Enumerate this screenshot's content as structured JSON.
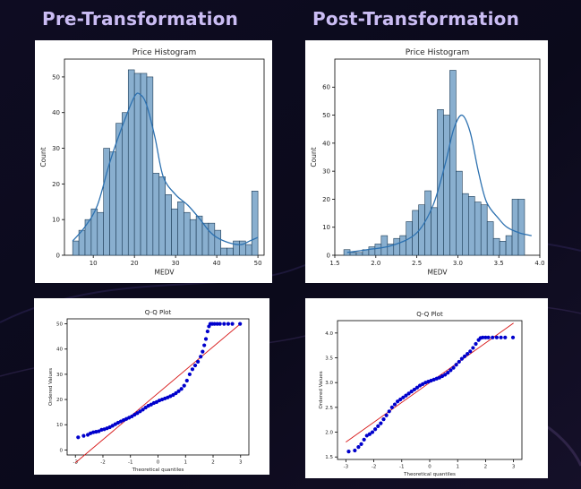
{
  "headings": {
    "pre": "Pre-Transformation",
    "post": "Post-Transformation"
  },
  "colors": {
    "heading": "#cbbdf4",
    "background": "#0d0b1e",
    "bar_fill": "#89afcf",
    "bar_edge": "#1d3b55",
    "kde_line": "#2d71b0",
    "qq_points": "#0000cc",
    "qq_line": "#d71414"
  },
  "chart_data": [
    {
      "id": "hist-pre",
      "type": "bar",
      "title": "Price Histogram",
      "xlabel": "MEDV",
      "ylabel": "Count",
      "xlim": [
        3.0,
        51.5
      ],
      "ylim": [
        0,
        55
      ],
      "xticks": [
        10,
        20,
        30,
        40,
        50
      ],
      "yticks": [
        0,
        10,
        20,
        30,
        40,
        50
      ],
      "bins": {
        "start": 5.0,
        "width": 1.5
      },
      "values": [
        4,
        7,
        10,
        13,
        12,
        30,
        29,
        37,
        40,
        52,
        51,
        51,
        50,
        23,
        22,
        17,
        13,
        15,
        12,
        10,
        11,
        9,
        9,
        7,
        2,
        2,
        4,
        4,
        3,
        18
      ],
      "kde": [
        [
          5,
          4
        ],
        [
          8,
          8
        ],
        [
          11,
          14
        ],
        [
          14,
          26
        ],
        [
          17,
          36
        ],
        [
          20,
          44.5
        ],
        [
          21.5,
          45
        ],
        [
          23,
          42
        ],
        [
          25,
          33
        ],
        [
          27,
          22
        ],
        [
          30,
          17
        ],
        [
          33,
          14
        ],
        [
          36,
          10
        ],
        [
          38,
          7
        ],
        [
          40,
          5
        ],
        [
          43,
          3.5
        ],
        [
          46,
          3
        ],
        [
          48,
          4
        ],
        [
          50,
          5
        ]
      ],
      "grid": false
    },
    {
      "id": "hist-post",
      "type": "bar",
      "title": "Price Histogram",
      "xlabel": "MEDV",
      "ylabel": "Count",
      "xlim": [
        1.5,
        4.0
      ],
      "ylim": [
        0,
        70
      ],
      "xticks": [
        1.5,
        2.0,
        2.5,
        3.0,
        3.5,
        4.0
      ],
      "yticks": [
        0,
        10,
        20,
        30,
        40,
        50,
        60
      ],
      "bins": {
        "start": 1.61,
        "width": 0.076
      },
      "values": [
        2,
        1,
        1,
        2,
        3,
        4,
        7,
        4,
        6,
        7,
        12,
        16,
        18,
        23,
        17,
        52,
        50,
        66,
        30,
        22,
        21,
        19,
        18,
        12,
        6,
        5,
        7,
        20,
        20
      ],
      "kde": [
        [
          1.65,
          1
        ],
        [
          1.9,
          2
        ],
        [
          2.2,
          3.5
        ],
        [
          2.5,
          8
        ],
        [
          2.7,
          18
        ],
        [
          2.85,
          33
        ],
        [
          2.95,
          45
        ],
        [
          3.05,
          50
        ],
        [
          3.15,
          44
        ],
        [
          3.25,
          30
        ],
        [
          3.35,
          19
        ],
        [
          3.5,
          13
        ],
        [
          3.6,
          10
        ],
        [
          3.75,
          8
        ],
        [
          3.9,
          7
        ]
      ],
      "grid": false
    },
    {
      "id": "qq-pre",
      "type": "scatter",
      "title": "Q-Q Plot",
      "xlabel": "Theoretical quantiles",
      "ylabel": "Ordered Values",
      "xlim": [
        -3.3,
        3.3
      ],
      "ylim": [
        -2,
        52
      ],
      "xticks": [
        -3,
        -2,
        -1,
        0,
        1,
        2,
        3
      ],
      "yticks": [
        0,
        10,
        20,
        30,
        40,
        50
      ],
      "line": {
        "intercept": 22.5,
        "slope": 9.2
      },
      "points": [
        [
          -2.9,
          5
        ],
        [
          -2.7,
          5.6
        ],
        [
          -2.55,
          6
        ],
        [
          -2.45,
          6.6
        ],
        [
          -2.35,
          7
        ],
        [
          -2.25,
          7.2
        ],
        [
          -2.15,
          7.4
        ],
        [
          -2.05,
          8
        ],
        [
          -1.95,
          8.2
        ],
        [
          -1.85,
          8.6
        ],
        [
          -1.75,
          9
        ],
        [
          -1.65,
          9.6
        ],
        [
          -1.55,
          10.2
        ],
        [
          -1.45,
          10.8
        ],
        [
          -1.35,
          11.3
        ],
        [
          -1.25,
          11.8
        ],
        [
          -1.15,
          12.3
        ],
        [
          -1.05,
          12.8
        ],
        [
          -0.95,
          13.3
        ],
        [
          -0.85,
          14
        ],
        [
          -0.75,
          14.6
        ],
        [
          -0.65,
          15.3
        ],
        [
          -0.55,
          16
        ],
        [
          -0.45,
          16.8
        ],
        [
          -0.35,
          17.5
        ],
        [
          -0.25,
          18
        ],
        [
          -0.15,
          18.6
        ],
        [
          -0.05,
          19
        ],
        [
          0.05,
          19.6
        ],
        [
          0.15,
          20
        ],
        [
          0.25,
          20.4
        ],
        [
          0.35,
          20.8
        ],
        [
          0.45,
          21.3
        ],
        [
          0.55,
          21.8
        ],
        [
          0.65,
          22.5
        ],
        [
          0.75,
          23.3
        ],
        [
          0.85,
          24.2
        ],
        [
          0.95,
          25.5
        ],
        [
          1.05,
          27.5
        ],
        [
          1.15,
          30
        ],
        [
          1.25,
          32
        ],
        [
          1.35,
          33.5
        ],
        [
          1.45,
          35
        ],
        [
          1.55,
          37
        ],
        [
          1.62,
          39
        ],
        [
          1.68,
          41.5
        ],
        [
          1.74,
          44
        ],
        [
          1.8,
          47
        ],
        [
          1.85,
          49
        ],
        [
          1.9,
          50
        ],
        [
          1.97,
          50
        ],
        [
          2.05,
          50
        ],
        [
          2.15,
          50
        ],
        [
          2.25,
          50
        ],
        [
          2.4,
          50
        ],
        [
          2.55,
          50
        ],
        [
          2.7,
          50
        ],
        [
          2.98,
          50
        ]
      ]
    },
    {
      "id": "qq-post",
      "type": "scatter",
      "title": "Q-Q Plot",
      "xlabel": "Theoretical quantiles",
      "ylabel": "Ordered Values",
      "xlim": [
        -3.3,
        3.3
      ],
      "ylim": [
        1.45,
        4.25
      ],
      "xticks": [
        -3,
        -2,
        -1,
        0,
        1,
        2,
        3
      ],
      "yticks": [
        1.5,
        2.0,
        2.5,
        3.0,
        3.5,
        4.0
      ],
      "line": {
        "intercept": 3.0,
        "slope": 0.4
      },
      "points": [
        [
          -2.9,
          1.61
        ],
        [
          -2.68,
          1.63
        ],
        [
          -2.55,
          1.7
        ],
        [
          -2.45,
          1.76
        ],
        [
          -2.35,
          1.85
        ],
        [
          -2.25,
          1.93
        ],
        [
          -2.15,
          1.96
        ],
        [
          -2.05,
          2.0
        ],
        [
          -1.95,
          2.06
        ],
        [
          -1.85,
          2.12
        ],
        [
          -1.75,
          2.18
        ],
        [
          -1.65,
          2.26
        ],
        [
          -1.55,
          2.34
        ],
        [
          -1.45,
          2.42
        ],
        [
          -1.35,
          2.5
        ],
        [
          -1.25,
          2.56
        ],
        [
          -1.15,
          2.62
        ],
        [
          -1.05,
          2.66
        ],
        [
          -0.95,
          2.7
        ],
        [
          -0.85,
          2.74
        ],
        [
          -0.75,
          2.78
        ],
        [
          -0.65,
          2.82
        ],
        [
          -0.55,
          2.86
        ],
        [
          -0.45,
          2.9
        ],
        [
          -0.35,
          2.94
        ],
        [
          -0.25,
          2.97
        ],
        [
          -0.15,
          3.0
        ],
        [
          -0.05,
          3.02
        ],
        [
          0.05,
          3.04
        ],
        [
          0.15,
          3.06
        ],
        [
          0.25,
          3.08
        ],
        [
          0.35,
          3.1
        ],
        [
          0.45,
          3.13
        ],
        [
          0.55,
          3.16
        ],
        [
          0.65,
          3.2
        ],
        [
          0.75,
          3.25
        ],
        [
          0.85,
          3.3
        ],
        [
          0.95,
          3.36
        ],
        [
          1.05,
          3.42
        ],
        [
          1.15,
          3.48
        ],
        [
          1.25,
          3.53
        ],
        [
          1.35,
          3.58
        ],
        [
          1.45,
          3.63
        ],
        [
          1.55,
          3.7
        ],
        [
          1.65,
          3.78
        ],
        [
          1.75,
          3.86
        ],
        [
          1.82,
          3.9
        ],
        [
          1.9,
          3.91
        ],
        [
          2.0,
          3.91
        ],
        [
          2.1,
          3.91
        ],
        [
          2.25,
          3.91
        ],
        [
          2.4,
          3.91
        ],
        [
          2.55,
          3.91
        ],
        [
          2.7,
          3.91
        ],
        [
          2.98,
          3.91
        ]
      ]
    }
  ]
}
